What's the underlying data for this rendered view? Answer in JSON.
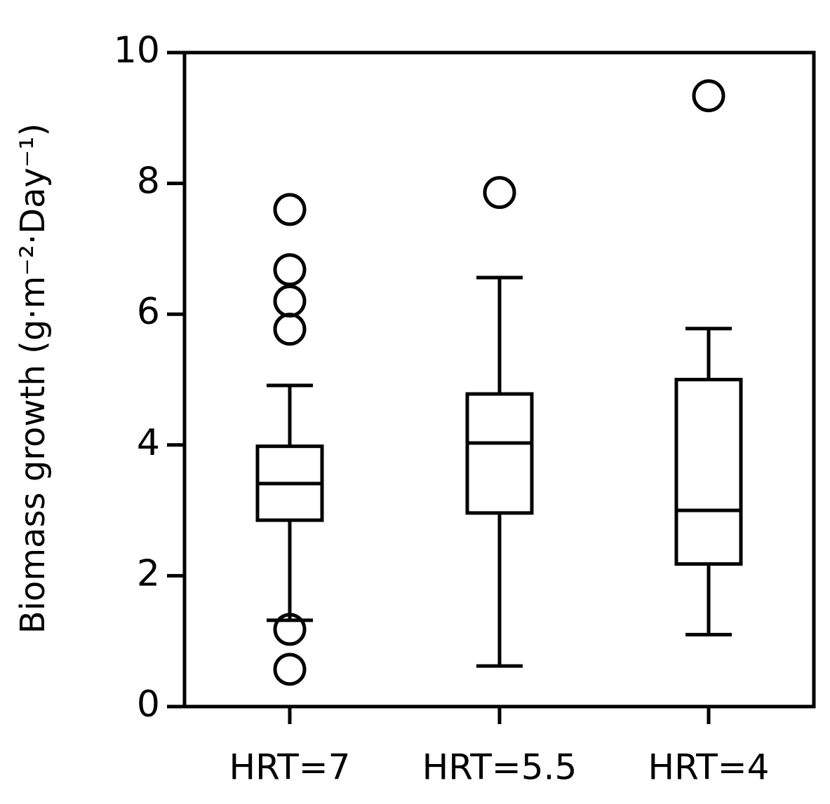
{
  "chart_data": {
    "type": "box",
    "y_label": "Biomass growth (g·m⁻²·Day⁻¹)",
    "categories": [
      "HRT=7",
      "HRT=5.5",
      "HRT=4"
    ],
    "color": "#000000",
    "boxes": [
      {
        "whisker_low": 1.32,
        "q1": 2.85,
        "median": 3.41,
        "q3": 3.98,
        "whisker_high": 4.91,
        "outliers": [
          7.6,
          6.68,
          6.2,
          5.77,
          1.18,
          0.57
        ]
      },
      {
        "whisker_low": 0.62,
        "q1": 2.96,
        "median": 4.03,
        "q3": 4.78,
        "whisker_high": 6.56,
        "outliers": [
          7.86
        ]
      },
      {
        "whisker_low": 1.1,
        "q1": 2.18,
        "median": 3.0,
        "q3": 5.0,
        "whisker_high": 5.78,
        "outliers": [
          9.34
        ]
      }
    ],
    "ylim": [
      0,
      10
    ],
    "yticks": [
      0,
      2,
      4,
      6,
      8,
      10
    ]
  }
}
